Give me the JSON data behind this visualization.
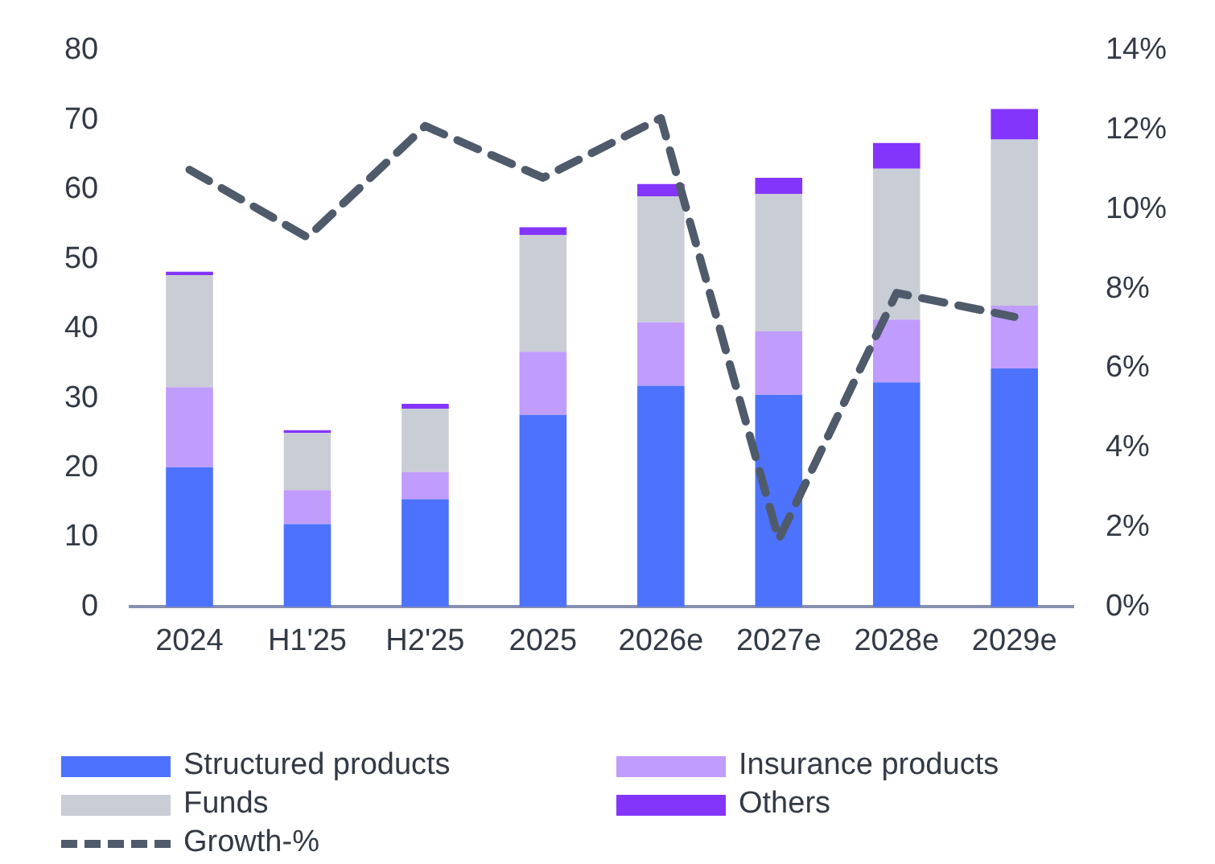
{
  "chart_data": {
    "type": "bar",
    "stacked": true,
    "categories": [
      "2024",
      "H1'25",
      "H2'25",
      "2025",
      "2026e",
      "2027e",
      "2028e",
      "2029e"
    ],
    "series": [
      {
        "name": "Structured products",
        "color": "#4d72fe",
        "values": [
          20.1,
          11.9,
          15.5,
          27.6,
          31.8,
          30.5,
          32.3,
          34.3
        ]
      },
      {
        "name": "Insurance products",
        "color": "#c09cfc",
        "values": [
          11.5,
          4.9,
          3.9,
          9.1,
          9.1,
          9.1,
          9.0,
          9.0
        ]
      },
      {
        "name": "Funds",
        "color": "#c9cdd5",
        "values": [
          16.1,
          8.2,
          9.1,
          16.8,
          18.1,
          19.8,
          21.7,
          23.9
        ]
      },
      {
        "name": "Others",
        "color": "#8435fc",
        "values": [
          0.5,
          0.4,
          0.7,
          1.1,
          1.8,
          2.3,
          3.7,
          4.4
        ]
      },
      {
        "name": "Growth-%",
        "type": "line",
        "axis": "y2",
        "color": "#4f5a6b",
        "line_style": "dashed",
        "values": [
          11.0,
          9.3,
          12.1,
          10.8,
          12.3,
          1.7,
          7.9,
          7.3
        ]
      }
    ],
    "ylim": [
      0,
      80
    ],
    "yticks": [
      0,
      10,
      20,
      30,
      40,
      50,
      60,
      70,
      80
    ],
    "y2lim": [
      0,
      14
    ],
    "y2ticks": [
      {
        "value": 0,
        "label": "0%"
      },
      {
        "value": 2,
        "label": "2%"
      },
      {
        "value": 4,
        "label": "4%"
      },
      {
        "value": 6,
        "label": "6%"
      },
      {
        "value": 8,
        "label": "8%"
      },
      {
        "value": 10,
        "label": "10%"
      },
      {
        "value": 12,
        "label": "12%"
      },
      {
        "value": 14,
        "label": "14%"
      }
    ],
    "grid": false,
    "legend": "bottom",
    "marker": "none"
  }
}
